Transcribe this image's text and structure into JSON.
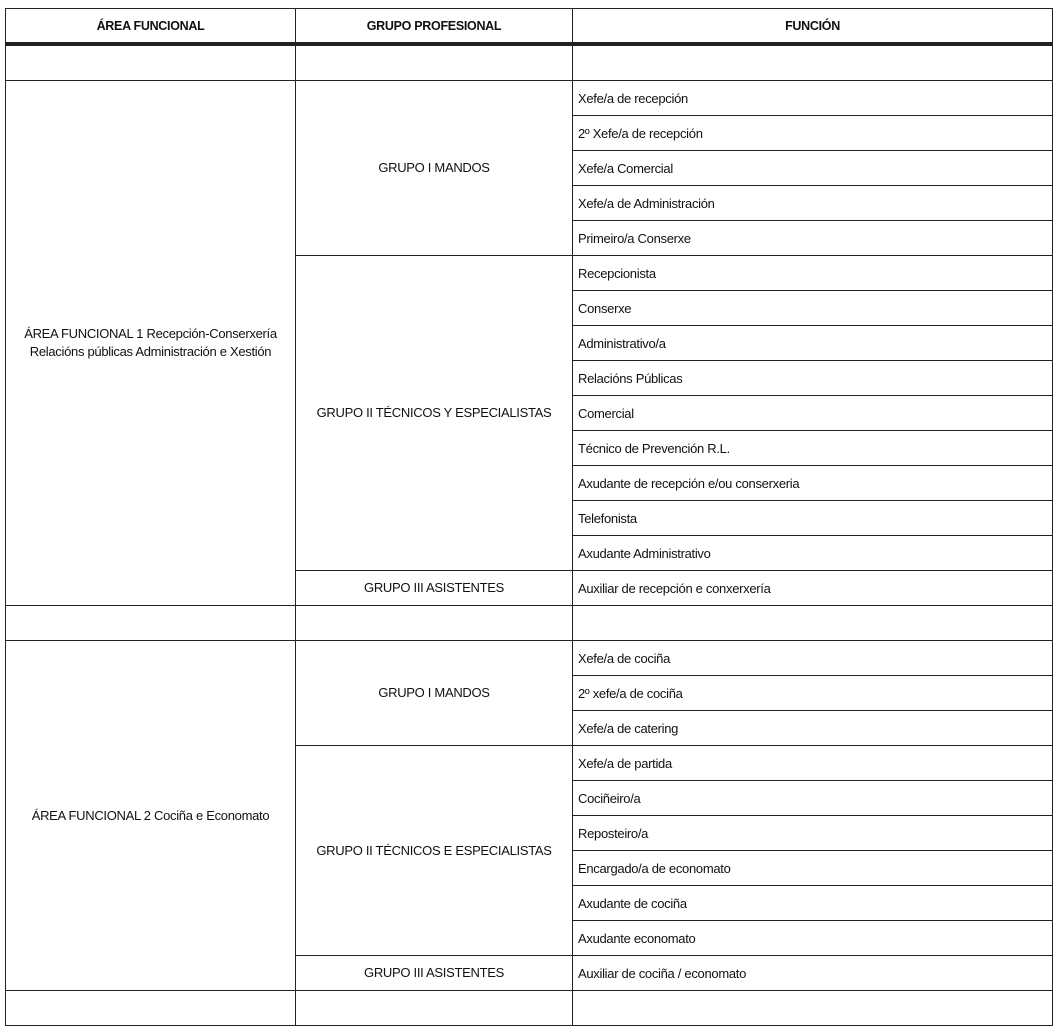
{
  "headers": [
    "ÁREA FUNCIONAL",
    "GRUPO PROFESIONAL",
    "FUNCIÓN"
  ],
  "areas": [
    {
      "name_line1": "ÁREA FUNCIONAL 1 Recepción-Conserxería",
      "name_line2": "Relacións públicas Administración e Xestión",
      "groups": [
        {
          "name": "GRUPO I MANDOS",
          "functions": [
            "Xefe/a de recepción",
            "2º Xefe/a de recepción",
            "Xefe/a Comercial",
            "Xefe/a de Administración",
            "Primeiro/a Conserxe"
          ]
        },
        {
          "name": "GRUPO II TÉCNICOS Y ESPECIALISTAS",
          "functions": [
            "Recepcionista",
            "Conserxe",
            "Administrativo/a",
            "Relacións Públicas",
            "Comercial",
            "Técnico de Prevención R.L.",
            "Axudante de recepción e/ou conserxeria",
            "Telefonista",
            "Axudante Administrativo"
          ]
        },
        {
          "name": "GRUPO III ASISTENTES",
          "functions": [
            "Auxiliar de recepción e conxerxería"
          ]
        }
      ]
    },
    {
      "name_line1": "ÁREA FUNCIONAL 2 Cociña e Economato",
      "name_line2": "",
      "groups": [
        {
          "name": "GRUPO I MANDOS",
          "functions": [
            "Xefe/a de cociña",
            "2º xefe/a de cociña",
            "Xefe/a de catering"
          ]
        },
        {
          "name": "GRUPO II TÉCNICOS E ESPECIALISTAS",
          "functions": [
            "Xefe/a de partida",
            "Cociñeiro/a",
            "Reposteiro/a",
            "Encargado/a de economato",
            "Axudante de cociña",
            "Axudante economato"
          ]
        },
        {
          "name": "GRUPO III ASISTENTES",
          "functions": [
            "Auxiliar de cociña / economato"
          ]
        }
      ]
    }
  ]
}
